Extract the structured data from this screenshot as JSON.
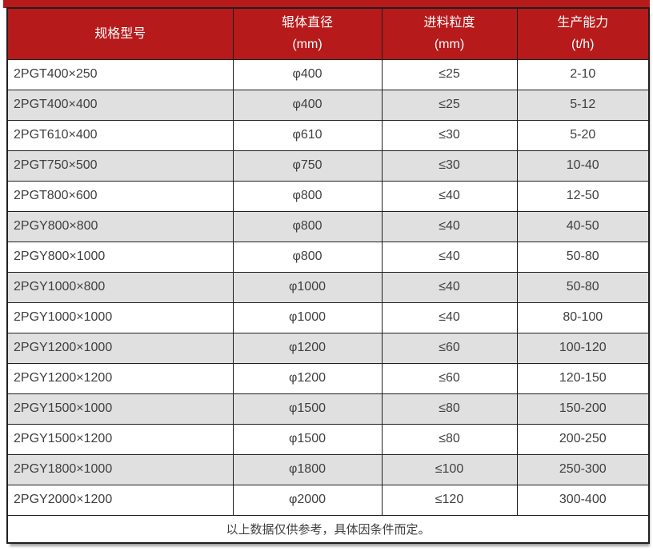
{
  "colors": {
    "header_bg": "#b61a1a",
    "header_text": "#ffffff",
    "row_bg": "#ffffff",
    "row_alt_bg": "#e0e0e0",
    "border": "#1f1f1f",
    "text": "#404040"
  },
  "table": {
    "columns": [
      {
        "title": "规格型号",
        "unit": ""
      },
      {
        "title": "辊体直径",
        "unit": "(mm)"
      },
      {
        "title": "进料粒度",
        "unit": "(mm)"
      },
      {
        "title": "生产能力",
        "unit": "(t/h)"
      }
    ],
    "rows": [
      [
        "2PGT400×250",
        "φ400",
        "≤25",
        "2-10"
      ],
      [
        "2PGT400×400",
        "φ400",
        "≤25",
        "5-12"
      ],
      [
        "2PGT610×400",
        "φ610",
        "≤30",
        "5-20"
      ],
      [
        "2PGT750×500",
        "φ750",
        "≤30",
        "10-40"
      ],
      [
        "2PGT800×600",
        "φ800",
        "≤40",
        "12-50"
      ],
      [
        "2PGY800×800",
        "φ800",
        "≤40",
        "40-50"
      ],
      [
        "2PGY800×1000",
        "φ800",
        "≤40",
        "50-80"
      ],
      [
        "2PGY1000×800",
        "φ1000",
        "≤40",
        "50-80"
      ],
      [
        "2PGY1000×1000",
        "φ1000",
        "≤40",
        "80-100"
      ],
      [
        "2PGY1200×1000",
        "φ1200",
        "≤60",
        "100-120"
      ],
      [
        "2PGY1200×1200",
        "φ1200",
        "≤60",
        "120-150"
      ],
      [
        "2PGY1500×1000",
        "φ1500",
        "≤80",
        "150-200"
      ],
      [
        "2PGY1500×1200",
        "φ1500",
        "≤80",
        "200-250"
      ],
      [
        "2PGY1800×1000",
        "φ1800",
        "≤100",
        "250-300"
      ],
      [
        "2PGY2000×1200",
        "φ2000",
        "≤120",
        "300-400"
      ]
    ],
    "footnote": "以上数据仅供参考，具体因条件而定。"
  }
}
